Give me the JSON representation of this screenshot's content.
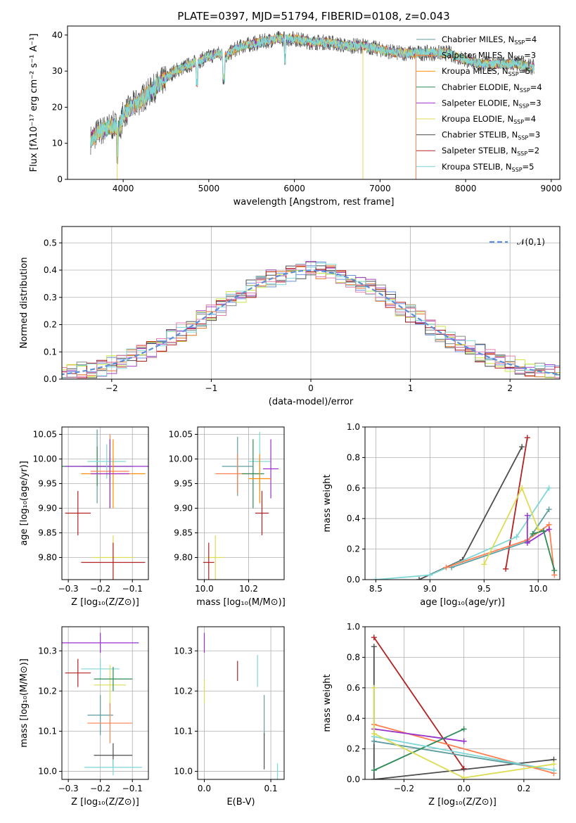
{
  "title": "PLATE=0397, MJD=51794, FIBERID=0108, z=0.043",
  "colors": {
    "series": [
      "#5f9ea0",
      "#ff7f50",
      "#ff8c00",
      "#2e8b57",
      "#9932cc",
      "#dddd55",
      "#4d4d4d",
      "#b22222",
      "#7fd6d6"
    ],
    "hist": [
      "#6a8fe0",
      "#e07020",
      "#888888",
      "#a040c0",
      "#c8e840",
      "#4d4d4d",
      "#b01818",
      "#7fd6d6",
      "#e080b0"
    ],
    "gaussian": "#5b8fd9",
    "grid": "#b0b0b0"
  },
  "legend": [
    {
      "name": "Chabrier MILES, N",
      "sub": "SSP",
      "tail": "=4"
    },
    {
      "name": "Salpeter MILES, N",
      "sub": "SSP",
      "tail": "=3"
    },
    {
      "name": "Kroupa MILES, N",
      "sub": "SSP",
      "tail": "=5"
    },
    {
      "name": "Chabrier ELODIE, N",
      "sub": "SSP",
      "tail": "=4"
    },
    {
      "name": "Salpeter ELODIE, N",
      "sub": "SSP",
      "tail": "=3"
    },
    {
      "name": "Kroupa ELODIE, N",
      "sub": "SSP",
      "tail": "=4"
    },
    {
      "name": "Chabrier STELIB, N",
      "sub": "SSP",
      "tail": "=3"
    },
    {
      "name": "Salpeter STELIB, N",
      "sub": "SSP",
      "tail": "=2"
    },
    {
      "name": "Kroupa STELIB, N",
      "sub": "SSP",
      "tail": "=5"
    }
  ],
  "chart_data": [
    {
      "type": "line",
      "id": "spectrum",
      "title": "PLATE=0397, MJD=51794, FIBERID=0108, z=0.043",
      "xlabel": "wavelength [Angstrom, rest frame]",
      "ylabel": "Flux [fλ10⁻¹⁷ erg cm⁻² s⁻¹ A⁻¹]",
      "xlim": [
        3350,
        9100
      ],
      "ylim": [
        0,
        42.5
      ],
      "xticks": [
        4000,
        5000,
        6000,
        7000,
        8000,
        9000
      ],
      "yticks": [
        0,
        10,
        20,
        30,
        40
      ],
      "grid": false,
      "legend_position": "top-right",
      "continuum": [
        [
          3620,
          11
        ],
        [
          3700,
          13
        ],
        [
          3800,
          14
        ],
        [
          3900,
          15
        ],
        [
          3960,
          14
        ],
        [
          4000,
          18
        ],
        [
          4100,
          20
        ],
        [
          4200,
          22
        ],
        [
          4300,
          24
        ],
        [
          4400,
          26
        ],
        [
          4500,
          28
        ],
        [
          4600,
          30
        ],
        [
          4700,
          31
        ],
        [
          4800,
          32
        ],
        [
          4900,
          33
        ],
        [
          5000,
          34
        ],
        [
          5100,
          35
        ],
        [
          5200,
          34
        ],
        [
          5300,
          36
        ],
        [
          5400,
          37
        ],
        [
          5600,
          38
        ],
        [
          5800,
          39
        ],
        [
          6000,
          39
        ],
        [
          6200,
          38
        ],
        [
          6400,
          38
        ],
        [
          6600,
          37
        ],
        [
          6800,
          37
        ],
        [
          7000,
          36
        ],
        [
          7200,
          35
        ],
        [
          7400,
          35
        ],
        [
          7600,
          35
        ],
        [
          7800,
          35
        ],
        [
          8000,
          33
        ],
        [
          8200,
          32
        ],
        [
          8400,
          32
        ],
        [
          8600,
          32
        ],
        [
          8800,
          31
        ]
      ],
      "dropouts": [
        {
          "x": 3930,
          "to": 0
        },
        {
          "x": 6800,
          "to": 0
        },
        {
          "x": 7420,
          "to": 0
        }
      ]
    },
    {
      "type": "histogram",
      "id": "residuals",
      "xlabel": "(data-model)/error",
      "ylabel": "Normed distribution",
      "xlim": [
        -2.5,
        2.5
      ],
      "ylim": [
        0,
        0.56
      ],
      "xticks": [
        -2,
        -1,
        0,
        1,
        2
      ],
      "yticks": [
        0.0,
        0.1,
        0.2,
        0.3,
        0.4,
        0.5
      ],
      "grid": true,
      "bin_width": 0.1,
      "reference_curve": {
        "name": "𝒩(0,1)",
        "mean": 0,
        "sigma": 1
      },
      "legend_position": "top-right"
    },
    {
      "type": "scatter",
      "id": "z-age",
      "xlabel": "Z [log₁₀(Z/Z⊙)]",
      "ylabel": "age  [log₁₀(age/yr)]",
      "xlim": [
        -0.32,
        -0.05
      ],
      "ylim": [
        9.755,
        10.065
      ],
      "xticks": [
        -0.3,
        -0.2,
        -0.1
      ],
      "yticks": [
        9.8,
        9.85,
        9.9,
        9.95,
        10.0,
        10.05
      ],
      "grid": true,
      "points": [
        {
          "x": -0.27,
          "y": 9.89,
          "xerr": 0.04,
          "yerr": 0.045,
          "c": 7
        },
        {
          "x": -0.16,
          "y": 9.8,
          "xerr": 0.065,
          "yerr": 0.045,
          "c": 5
        },
        {
          "x": -0.16,
          "y": 9.79,
          "xerr": 0.1,
          "yerr": 0.04,
          "c": 7
        },
        {
          "x": -0.21,
          "y": 9.985,
          "xerr": 0.045,
          "yerr": 0.075,
          "c": 0
        },
        {
          "x": -0.21,
          "y": 9.985,
          "xerr": 0.11,
          "yerr": 0.04,
          "c": 3
        },
        {
          "x": -0.17,
          "y": 9.985,
          "xerr": 0.14,
          "yerr": 0.03,
          "c": 4
        },
        {
          "x": -0.18,
          "y": 9.995,
          "xerr": 0.06,
          "yerr": 0.035,
          "c": 8
        },
        {
          "x": -0.17,
          "y": 9.975,
          "xerr": 0.06,
          "yerr": 0.075,
          "c": 1
        },
        {
          "x": -0.16,
          "y": 9.97,
          "xerr": 0.1,
          "yerr": 0.07,
          "c": 2
        },
        {
          "x": -0.17,
          "y": 9.97,
          "xerr": 0.06,
          "yerr": 0.07,
          "c": 4
        }
      ]
    },
    {
      "type": "scatter",
      "id": "mass-age",
      "xlabel": "mass [log₁₀(M/M⊙)]",
      "xlim": [
        9.97,
        10.36
      ],
      "ylim": [
        9.755,
        10.065
      ],
      "xticks": [
        10.0,
        10.2
      ],
      "yticks": [
        9.8,
        9.85,
        9.9,
        9.95,
        10.0,
        10.05
      ],
      "grid": true,
      "points": [
        {
          "x": 10.26,
          "y": 9.89,
          "xerr": 0.03,
          "yerr": 0.045,
          "c": 7
        },
        {
          "x": 10.05,
          "y": 9.8,
          "xerr": 0.04,
          "yerr": 0.045,
          "c": 5
        },
        {
          "x": 10.02,
          "y": 9.79,
          "xerr": 0.025,
          "yerr": 0.04,
          "c": 7
        },
        {
          "x": 10.15,
          "y": 9.985,
          "xerr": 0.07,
          "yerr": 0.06,
          "c": 0
        },
        {
          "x": 10.15,
          "y": 9.97,
          "xerr": 0.1,
          "yerr": 0.04,
          "c": 1
        },
        {
          "x": 10.25,
          "y": 9.995,
          "xerr": 0.05,
          "yerr": 0.06,
          "c": 8
        },
        {
          "x": 10.22,
          "y": 9.97,
          "xerr": 0.05,
          "yerr": 0.07,
          "c": 3
        },
        {
          "x": 10.3,
          "y": 9.98,
          "xerr": 0.035,
          "yerr": 0.06,
          "c": 4
        },
        {
          "x": 10.25,
          "y": 9.96,
          "xerr": 0.05,
          "yerr": 0.05,
          "c": 2
        }
      ]
    },
    {
      "type": "line",
      "id": "age-weight",
      "xlabel": "age  [log₁₀(age/yr)]",
      "ylabel": "mass weight",
      "xlim": [
        8.4,
        10.2
      ],
      "ylim": [
        0,
        1.0
      ],
      "xticks": [
        8.5,
        9.0,
        9.5,
        10.0
      ],
      "yticks": [
        0.0,
        0.2,
        0.4,
        0.6,
        0.8,
        1.0
      ],
      "grid": true,
      "series": [
        {
          "c": 6,
          "points": [
            [
              8.9,
              0.0
            ],
            [
              9.3,
              0.13
            ],
            [
              9.85,
              0.87
            ]
          ]
        },
        {
          "c": 7,
          "points": [
            [
              9.7,
              0.07
            ],
            [
              9.9,
              0.93
            ]
          ]
        },
        {
          "c": 0,
          "points": [
            [
              9.2,
              0.08
            ],
            [
              9.9,
              0.25
            ],
            [
              10.1,
              0.46
            ]
          ]
        },
        {
          "c": 8,
          "points": [
            [
              8.5,
              0.0
            ],
            [
              9.0,
              0.03
            ],
            [
              9.8,
              0.28
            ],
            [
              10.1,
              0.6
            ]
          ]
        },
        {
          "c": 1,
          "points": [
            [
              9.15,
              0.08
            ],
            [
              9.9,
              0.26
            ],
            [
              10.1,
              0.36
            ],
            [
              10.15,
              0.03
            ]
          ]
        },
        {
          "c": 4,
          "points": [
            [
              9.9,
              0.42
            ],
            [
              9.9,
              0.24
            ],
            [
              10.1,
              0.33
            ]
          ]
        },
        {
          "c": 3,
          "points": [
            [
              9.95,
              0.3
            ],
            [
              10.05,
              0.32
            ],
            [
              10.15,
              0.06
            ]
          ]
        },
        {
          "c": 5,
          "points": [
            [
              9.5,
              0.1
            ],
            [
              9.85,
              0.6
            ],
            [
              10.0,
              0.33
            ]
          ]
        }
      ]
    },
    {
      "type": "scatter",
      "id": "z-mass",
      "xlabel": "Z [log₁₀(Z/Z⊙)]",
      "ylabel": "mass [log₁₀(M/M⊙)]",
      "xlim": [
        -0.32,
        -0.05
      ],
      "ylim": [
        9.98,
        10.36
      ],
      "xticks": [
        -0.3,
        -0.2,
        -0.1
      ],
      "yticks": [
        10.0,
        10.1,
        10.2,
        10.3
      ],
      "grid": true,
      "points": [
        {
          "x": -0.27,
          "y": 10.245,
          "xerr": 0.04,
          "yerr": 0.035,
          "c": 7
        },
        {
          "x": -0.2,
          "y": 10.32,
          "xerr": 0.12,
          "yerr": 0.025,
          "c": 4
        },
        {
          "x": -0.2,
          "y": 10.255,
          "xerr": 0.06,
          "yerr": 0.025,
          "c": 8
        },
        {
          "x": -0.17,
          "y": 10.215,
          "xerr": 0.05,
          "yerr": 0.05,
          "c": 5
        },
        {
          "x": -0.16,
          "y": 10.23,
          "xerr": 0.06,
          "yerr": 0.03,
          "c": 3
        },
        {
          "x": -0.2,
          "y": 10.14,
          "xerr": 0.04,
          "yerr": 0.05,
          "c": 0
        },
        {
          "x": -0.17,
          "y": 10.12,
          "xerr": 0.07,
          "yerr": 0.05,
          "c": 1
        },
        {
          "x": -0.16,
          "y": 10.04,
          "xerr": 0.06,
          "yerr": 0.03,
          "c": 6
        },
        {
          "x": -0.16,
          "y": 10.01,
          "xerr": 0.09,
          "yerr": 0.02,
          "c": 8
        }
      ]
    },
    {
      "type": "scatter",
      "id": "ebv-mass",
      "xlabel": "E(B-V)",
      "xlim": [
        -0.01,
        0.12
      ],
      "ylim": [
        9.98,
        10.36
      ],
      "xticks": [
        0.0,
        0.1
      ],
      "yticks": [
        10.0,
        10.1,
        10.2,
        10.3
      ],
      "grid": true,
      "points": [
        {
          "x": 0.0,
          "y": 10.32,
          "yerr": 0.025,
          "c": 4
        },
        {
          "x": 0.0,
          "y": 10.2,
          "yerr": 0.03,
          "c": 5
        },
        {
          "x": 0.05,
          "y": 10.25,
          "yerr": 0.025,
          "c": 7
        },
        {
          "x": 0.08,
          "y": 10.25,
          "yerr": 0.04,
          "c": 8
        },
        {
          "x": 0.09,
          "y": 10.14,
          "yerr": 0.05,
          "c": 0
        },
        {
          "x": 0.09,
          "y": 10.05,
          "yerr": 0.045,
          "c": 6
        },
        {
          "x": 0.11,
          "y": 10.0,
          "yerr": 0.02,
          "c": 8
        }
      ]
    },
    {
      "type": "line",
      "id": "z-weight",
      "xlabel": "Z [log₁₀(Z/Z⊙)]",
      "ylabel": "mass weight",
      "xlim": [
        -0.33,
        0.32
      ],
      "ylim": [
        0,
        1.0
      ],
      "xticks": [
        -0.2,
        0.0,
        0.2
      ],
      "yticks": [
        0.0,
        0.2,
        0.4,
        0.6,
        0.8,
        1.0
      ],
      "grid": true,
      "series": [
        {
          "c": 7,
          "points": [
            [
              -0.3,
              0.93
            ],
            [
              0.0,
              0.07
            ]
          ]
        },
        {
          "c": 6,
          "points": [
            [
              -0.3,
              0.87
            ],
            [
              -0.3,
              0.0
            ],
            [
              0.3,
              0.13
            ]
          ]
        },
        {
          "c": 0,
          "points": [
            [
              -0.3,
              0.25
            ],
            [
              0.3,
              0.06
            ]
          ]
        },
        {
          "c": 1,
          "points": [
            [
              -0.3,
              0.36
            ],
            [
              0.3,
              0.04
            ]
          ]
        },
        {
          "c": 4,
          "points": [
            [
              -0.3,
              0.33
            ],
            [
              0.0,
              0.25
            ]
          ]
        },
        {
          "c": 3,
          "points": [
            [
              -0.3,
              0.06
            ],
            [
              0.0,
              0.33
            ]
          ]
        },
        {
          "c": 8,
          "points": [
            [
              -0.3,
              0.28
            ],
            [
              0.3,
              0.06
            ]
          ]
        },
        {
          "c": 5,
          "points": [
            [
              -0.3,
              0.6
            ],
            [
              -0.3,
              0.3
            ],
            [
              0.0,
              0.01
            ],
            [
              0.3,
              0.1
            ]
          ]
        }
      ]
    }
  ]
}
